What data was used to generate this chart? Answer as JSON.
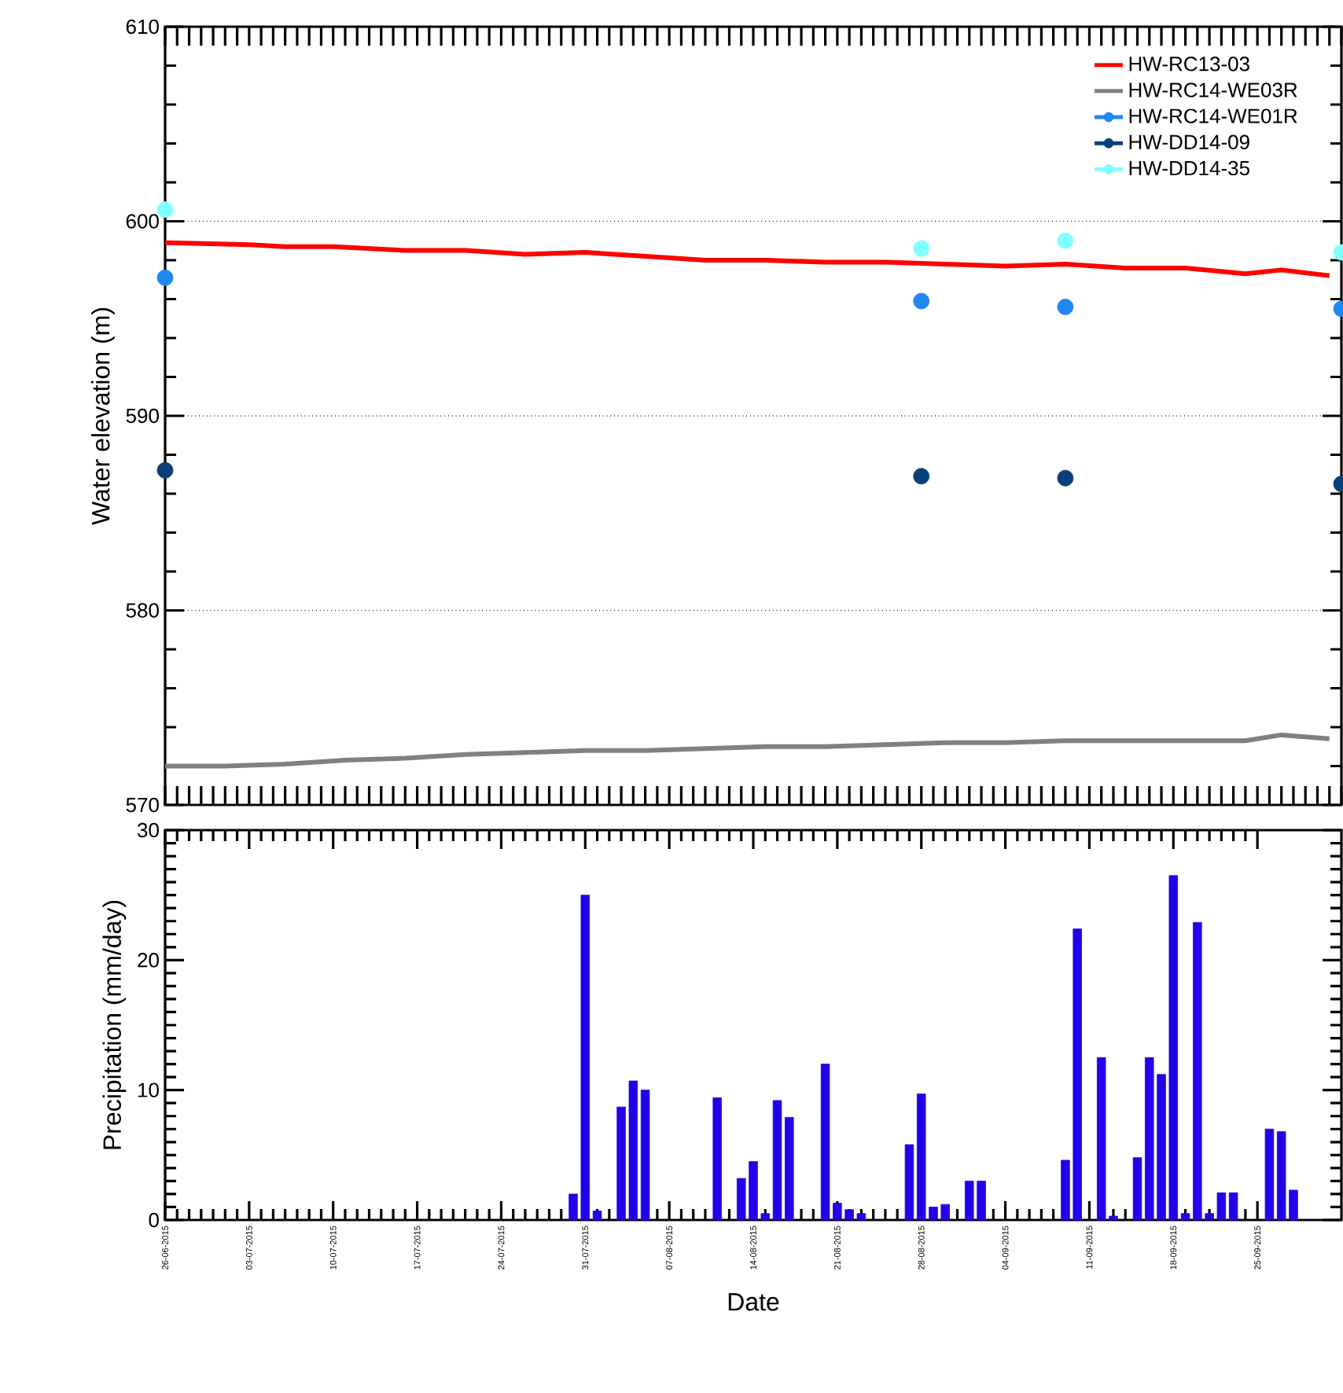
{
  "chart_data": [
    {
      "type": "line",
      "ylabel": "Water elevation (m)",
      "xlim": [
        "2015-06-26",
        "2015-10-02"
      ],
      "ylim": [
        570,
        610
      ],
      "yticks": [
        570,
        580,
        590,
        600,
        610
      ],
      "grid": "y",
      "legend": "top right",
      "tick_labels": "y",
      "series": [
        {
          "name": "HW-RC13-03",
          "type": "line",
          "color": "#ff0000",
          "x": [
            "2015-06-26",
            "2015-07-03",
            "2015-07-06",
            "2015-07-10",
            "2015-07-16",
            "2015-07-21",
            "2015-07-26",
            "2015-07-31",
            "2015-08-05",
            "2015-08-10",
            "2015-08-15",
            "2015-08-20",
            "2015-08-25",
            "2015-08-30",
            "2015-09-04",
            "2015-09-09",
            "2015-09-14",
            "2015-09-19",
            "2015-09-24",
            "2015-09-27",
            "2015-10-01"
          ],
          "values": [
            598.9,
            598.8,
            598.7,
            598.7,
            598.5,
            598.5,
            598.3,
            598.4,
            598.2,
            598.0,
            598.0,
            597.9,
            597.9,
            597.8,
            597.7,
            597.8,
            597.6,
            597.6,
            597.3,
            597.5,
            597.2
          ]
        },
        {
          "name": "HW-RC14-WE03R",
          "type": "line",
          "color": "#808080",
          "x": [
            "2015-06-26",
            "2015-07-01",
            "2015-07-06",
            "2015-07-11",
            "2015-07-16",
            "2015-07-21",
            "2015-07-26",
            "2015-07-31",
            "2015-08-05",
            "2015-08-10",
            "2015-08-15",
            "2015-08-20",
            "2015-08-25",
            "2015-08-30",
            "2015-09-04",
            "2015-09-09",
            "2015-09-14",
            "2015-09-19",
            "2015-09-24",
            "2015-09-27",
            "2015-10-01"
          ],
          "values": [
            572.0,
            572.0,
            572.1,
            572.3,
            572.4,
            572.6,
            572.7,
            572.8,
            572.8,
            572.9,
            573.0,
            573.0,
            573.1,
            573.2,
            573.2,
            573.3,
            573.3,
            573.3,
            573.3,
            573.6,
            573.4
          ]
        },
        {
          "name": "HW-RC14-WE01R",
          "type": "scatter",
          "marker": "circle",
          "color": "#1e88f0",
          "x": [
            "2015-06-26",
            "2015-08-28",
            "2015-09-09",
            "2015-10-02"
          ],
          "values": [
            597.1,
            595.9,
            595.6,
            595.5
          ]
        },
        {
          "name": "HW-DD14-09",
          "type": "scatter",
          "marker": "circle",
          "color": "#0a3f7a",
          "x": [
            "2015-06-26",
            "2015-08-28",
            "2015-09-09",
            "2015-10-02"
          ],
          "values": [
            587.2,
            586.9,
            586.8,
            586.5
          ]
        },
        {
          "name": "HW-DD14-35",
          "type": "scatter",
          "marker": "circle",
          "color": "#80ffff",
          "x": [
            "2015-06-26",
            "2015-08-28",
            "2015-09-09",
            "2015-10-02"
          ],
          "values": [
            600.6,
            598.6,
            599.0,
            598.4
          ]
        }
      ]
    },
    {
      "type": "bar",
      "xlabel": "Date",
      "ylabel": "Precipitation (mm/day)",
      "color": "#2200e8",
      "xlim": [
        "2015-06-26",
        "2015-10-02"
      ],
      "ylim": [
        0,
        30
      ],
      "yticks": [
        0,
        10,
        20,
        30
      ],
      "xticks": [
        {
          "value": "2015-06-26",
          "label": "26-06-2015"
        },
        {
          "value": "2015-07-03",
          "label": "03-07-2015"
        },
        {
          "value": "2015-07-10",
          "label": "10-07-2015"
        },
        {
          "value": "2015-07-17",
          "label": "17-07-2015"
        },
        {
          "value": "2015-07-24",
          "label": "24-07-2015"
        },
        {
          "value": "2015-07-31",
          "label": "31-07-2015"
        },
        {
          "value": "2015-08-07",
          "label": "07-08-2015"
        },
        {
          "value": "2015-08-14",
          "label": "14-08-2015"
        },
        {
          "value": "2015-08-21",
          "label": "21-08-2015"
        },
        {
          "value": "2015-08-28",
          "label": "28-08-2015"
        },
        {
          "value": "2015-09-04",
          "label": "04-09-2015"
        },
        {
          "value": "2015-09-11",
          "label": "11-09-2015"
        },
        {
          "value": "2015-09-18",
          "label": "18-09-2015"
        },
        {
          "value": "2015-09-25",
          "label": "25-09-2015"
        }
      ],
      "x": [
        "2015-07-30",
        "2015-07-31",
        "2015-08-01",
        "2015-08-03",
        "2015-08-04",
        "2015-08-05",
        "2015-08-11",
        "2015-08-13",
        "2015-08-14",
        "2015-08-15",
        "2015-08-16",
        "2015-08-17",
        "2015-08-20",
        "2015-08-21",
        "2015-08-22",
        "2015-08-23",
        "2015-08-27",
        "2015-08-28",
        "2015-08-29",
        "2015-08-30",
        "2015-09-01",
        "2015-09-02",
        "2015-09-09",
        "2015-09-10",
        "2015-09-12",
        "2015-09-13",
        "2015-09-15",
        "2015-09-16",
        "2015-09-17",
        "2015-09-18",
        "2015-09-19",
        "2015-09-20",
        "2015-09-21",
        "2015-09-22",
        "2015-09-23",
        "2015-09-26",
        "2015-09-27",
        "2015-09-28"
      ],
      "values": [
        2.0,
        25.0,
        0.7,
        8.7,
        10.7,
        10.0,
        9.4,
        3.2,
        4.5,
        0.5,
        9.2,
        7.9,
        12.0,
        1.3,
        0.8,
        0.5,
        5.8,
        9.7,
        1.0,
        1.2,
        3.0,
        3.0,
        4.6,
        22.4,
        12.5,
        0.3,
        4.8,
        12.5,
        11.2,
        26.5,
        0.5,
        22.9,
        0.5,
        2.1,
        2.1,
        7.0,
        6.8,
        2.3
      ]
    }
  ]
}
